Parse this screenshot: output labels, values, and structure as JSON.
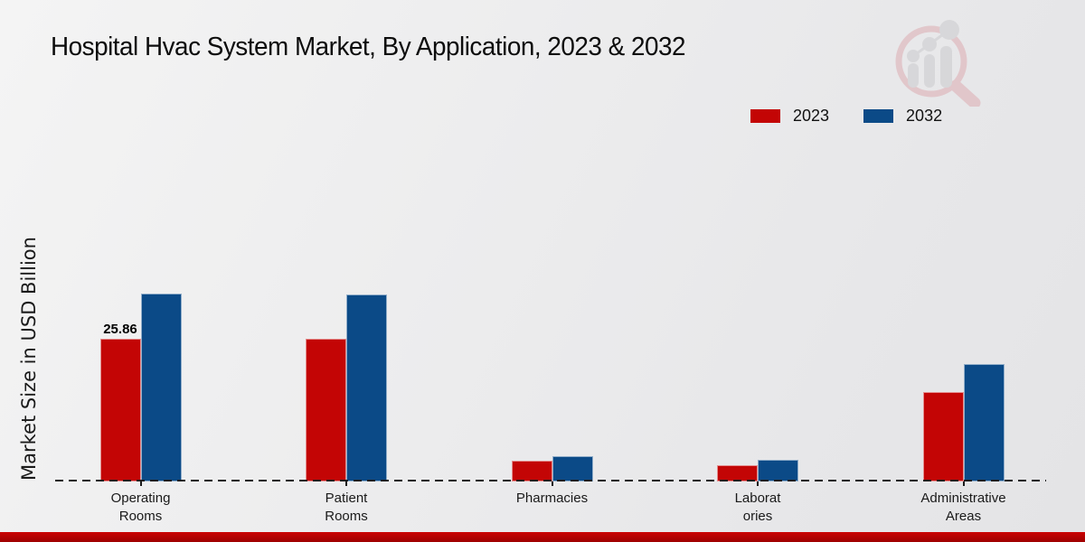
{
  "page": {
    "title": "Hospital Hvac System Market, By Application, 2023 & 2032"
  },
  "chart_data": {
    "type": "bar",
    "title": "Hospital Hvac System Market, By Application, 2023 & 2032",
    "ylabel": "Market Size in USD Billion",
    "xlabel": "",
    "categories": [
      "Operating Rooms",
      "Patient Rooms",
      "Pharmacies",
      "Laboratories",
      "Administrative Areas"
    ],
    "category_tick_labels": [
      "Operating\nRooms",
      "Patient\nRooms",
      "Pharmacies",
      "Laborat\nories",
      "Administrative\nAreas"
    ],
    "series": [
      {
        "name": "2023",
        "color": "#c30505",
        "values": [
          25.86,
          26.0,
          3.7,
          3.0,
          16.2
        ]
      },
      {
        "name": "2032",
        "color": "#0b4a87",
        "values": [
          34.2,
          34.0,
          4.6,
          4.0,
          21.4
        ]
      }
    ],
    "annotations": [
      {
        "text": "25.86",
        "category": "Operating Rooms",
        "series": "2023"
      }
    ],
    "ylim": [
      0,
      40
    ],
    "grid": false,
    "legend_position": "upper right",
    "baseline_style": "dashed"
  },
  "colors": {
    "series_2023": "#c30505",
    "series_2032": "#0b4a87",
    "bottom_strip": "#c00000",
    "axis_dash": "#1c1c1c"
  },
  "watermark": {
    "name": "magnifier-bar-chart-logo"
  }
}
